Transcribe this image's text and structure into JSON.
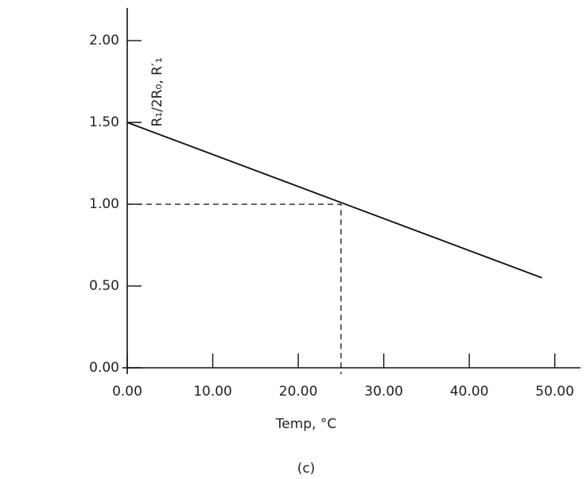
{
  "chart_data": {
    "type": "line",
    "x": [
      0,
      48.5
    ],
    "values": [
      1.5,
      0.55
    ],
    "color": "#111111",
    "xlim": [
      0,
      53
    ],
    "ylim": [
      0,
      2.2
    ],
    "xticks": [
      {
        "value": 0,
        "label": "0.00"
      },
      {
        "value": 10,
        "label": "10.00"
      },
      {
        "value": 20,
        "label": "20.00"
      },
      {
        "value": 30,
        "label": "30.00"
      },
      {
        "value": 40,
        "label": "40.00"
      },
      {
        "value": 50,
        "label": "50.00"
      }
    ],
    "yticks": [
      {
        "value": 0,
        "label": "0.00"
      },
      {
        "value": 0.5,
        "label": "0.50"
      },
      {
        "value": 1,
        "label": "1.00"
      },
      {
        "value": 1.5,
        "label": "1.50"
      },
      {
        "value": 2,
        "label": "2.00"
      }
    ],
    "crosshair": {
      "x": 25,
      "y": 1
    },
    "xlabel": "Temp, °C",
    "ylabel": "R₁/2R₀,  R′₁",
    "caption": "(c)"
  }
}
